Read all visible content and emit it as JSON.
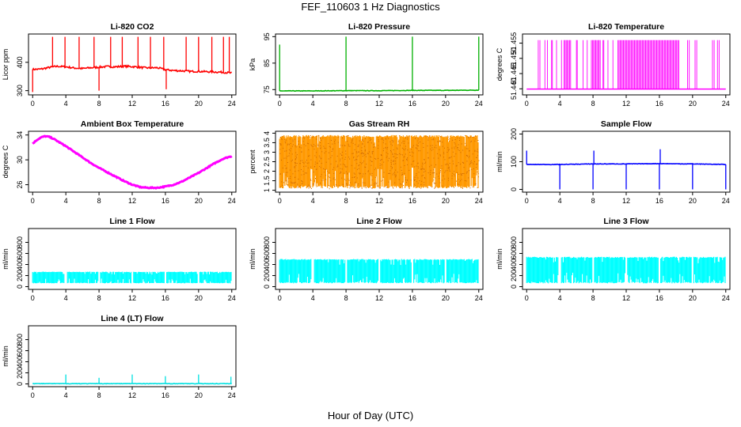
{
  "figure": {
    "title": "FEF_110603  1 Hz Diagnostics",
    "xlabel": "Hour of Day (UTC)"
  },
  "chart_data": [
    {
      "id": "co2",
      "type": "line",
      "title": "Li-820 CO2",
      "xlabel": "",
      "ylabel": "Licor ppm",
      "xlim": [
        -0.5,
        24.5
      ],
      "ylim": [
        285,
        500
      ],
      "xticks": [
        0,
        4,
        8,
        12,
        16,
        20,
        24
      ],
      "yticks": [
        300,
        400
      ],
      "color": "#ff0000",
      "grid": false,
      "series": [
        {
          "x": [
            0,
            1,
            2,
            3,
            4,
            5,
            6,
            7,
            8,
            9,
            10,
            11,
            12,
            13,
            14,
            15,
            16,
            17,
            18,
            19,
            20,
            21,
            22,
            23,
            24
          ],
          "y": [
            375,
            376,
            382,
            386,
            384,
            380,
            378,
            381,
            383,
            385,
            384,
            386,
            385,
            382,
            380,
            381,
            374,
            371,
            370,
            368,
            368,
            367,
            366,
            365,
            362
          ]
        }
      ],
      "spikes": [
        {
          "x": 0.0,
          "y": 295
        },
        {
          "x": 2.4,
          "y": 490
        },
        {
          "x": 3.9,
          "y": 490
        },
        {
          "x": 5.6,
          "y": 490
        },
        {
          "x": 7.4,
          "y": 490
        },
        {
          "x": 8.0,
          "y": 300
        },
        {
          "x": 9.4,
          "y": 490
        },
        {
          "x": 10.8,
          "y": 490
        },
        {
          "x": 12.7,
          "y": 490
        },
        {
          "x": 14.2,
          "y": 490
        },
        {
          "x": 15.8,
          "y": 490
        },
        {
          "x": 16.1,
          "y": 305
        },
        {
          "x": 18.5,
          "y": 490
        },
        {
          "x": 20.0,
          "y": 490
        },
        {
          "x": 21.6,
          "y": 490
        },
        {
          "x": 23.0,
          "y": 490
        },
        {
          "x": 23.7,
          "y": 490
        }
      ]
    },
    {
      "id": "pressure",
      "type": "line",
      "title": "Li-820 Pressure",
      "xlabel": "",
      "ylabel": "kPa",
      "xlim": [
        -0.5,
        24.5
      ],
      "ylim": [
        73,
        96
      ],
      "xticks": [
        0,
        4,
        8,
        12,
        16,
        20,
        24
      ],
      "yticks": [
        75,
        85,
        95
      ],
      "color": "#00b000",
      "grid": false,
      "series": [
        {
          "x": [
            0,
            4,
            8,
            12,
            16,
            20,
            24
          ],
          "y": [
            74.5,
            74.5,
            74.6,
            74.6,
            74.7,
            74.7,
            74.8
          ]
        }
      ],
      "spikes": [
        {
          "x": 0.0,
          "y": 92
        },
        {
          "x": 8.0,
          "y": 95
        },
        {
          "x": 16.0,
          "y": 95
        },
        {
          "x": 24.0,
          "y": 95
        }
      ]
    },
    {
      "id": "licor-temp",
      "type": "line",
      "title": "Li-820 Temperature",
      "xlabel": "",
      "ylabel": "degrees C",
      "xlim": [
        -0.5,
        24.5
      ],
      "ylim": [
        51.438,
        51.458
      ],
      "xticks": [
        0,
        4,
        8,
        12,
        16,
        20,
        24
      ],
      "ytick_labels": [
        "51.440",
        "51.445",
        "51.450",
        "51.455"
      ],
      "yticks": [
        51.44,
        51.445,
        51.45,
        51.455
      ],
      "color": "#ff00ff",
      "grid": false,
      "baseline": 51.4399,
      "top": 51.456,
      "toggle_bands": [
        [
          1.4,
          1.6
        ],
        [
          2.2,
          2.5
        ],
        [
          3.0,
          3.1
        ],
        [
          3.6,
          4.2
        ],
        [
          4.5,
          5.4
        ],
        [
          6.0,
          6.1
        ],
        [
          6.8,
          7.3
        ],
        [
          7.8,
          8.9
        ],
        [
          9.2,
          9.3
        ],
        [
          9.8,
          10.4
        ],
        [
          11.0,
          18.4
        ],
        [
          19.4,
          19.6
        ],
        [
          20.3,
          20.5
        ],
        [
          22.4,
          22.6
        ],
        [
          23.0,
          23.2
        ]
      ]
    },
    {
      "id": "ambient-temp",
      "type": "line",
      "title": "Ambient Box Temperature",
      "xlabel": "",
      "ylabel": "degrees C",
      "xlim": [
        -0.5,
        24.5
      ],
      "ylim": [
        24.8,
        34.6
      ],
      "xticks": [
        0,
        4,
        8,
        12,
        16,
        20,
        24
      ],
      "yticks": [
        26,
        30,
        34
      ],
      "color": "#ff00ff",
      "grid": false,
      "series": [
        {
          "x": [
            0,
            0.5,
            1,
            1.5,
            2,
            2.5,
            3,
            4,
            5,
            6,
            7,
            8,
            9,
            10,
            11,
            12,
            13,
            14,
            15,
            16,
            17,
            18,
            19,
            20,
            21,
            22,
            23,
            24
          ],
          "y": [
            32.6,
            33.2,
            33.6,
            33.8,
            33.7,
            33.4,
            33.0,
            32.2,
            31.3,
            30.4,
            29.5,
            28.7,
            28.0,
            27.3,
            26.6,
            26.0,
            25.6,
            25.5,
            25.5,
            25.7,
            26.0,
            26.5,
            27.2,
            27.9,
            28.7,
            29.5,
            30.2,
            30.6
          ]
        }
      ]
    },
    {
      "id": "rh",
      "type": "line",
      "title": "Gas Stream RH",
      "xlabel": "",
      "ylabel": "percent",
      "xlim": [
        -0.5,
        24.5
      ],
      "ylim": [
        0.9,
        4.1
      ],
      "xticks": [
        0,
        4,
        8,
        12,
        16,
        20,
        24
      ],
      "yticks": [
        1.0,
        1.5,
        2.0,
        2.5,
        3.0,
        3.5,
        4.0
      ],
      "color": "#ff9900",
      "grid": false,
      "band": [
        1.1,
        3.9
      ]
    },
    {
      "id": "sample-flow",
      "type": "line",
      "title": "Sample Flow",
      "xlabel": "",
      "ylabel": "ml/min",
      "xlim": [
        -0.5,
        24.5
      ],
      "ylim": [
        -10,
        210
      ],
      "xticks": [
        0,
        4,
        8,
        12,
        16,
        20,
        24
      ],
      "yticks": [
        0,
        100,
        200
      ],
      "color": "#0000ff",
      "grid": false,
      "series": [
        {
          "x": [
            0,
            4,
            8,
            12,
            16,
            20,
            24
          ],
          "y": [
            90,
            90,
            92,
            92,
            93,
            92,
            90
          ]
        }
      ],
      "spikes": [
        {
          "x": 0.0,
          "y": 140
        },
        {
          "x": 4.0,
          "y": 0
        },
        {
          "x": 8.0,
          "y": 0
        },
        {
          "x": 8.1,
          "y": 140
        },
        {
          "x": 12.0,
          "y": 0
        },
        {
          "x": 16.0,
          "y": 0
        },
        {
          "x": 16.1,
          "y": 145
        },
        {
          "x": 20.0,
          "y": 0
        },
        {
          "x": 24.0,
          "y": 0
        }
      ]
    },
    {
      "id": "line1",
      "type": "line",
      "title": "Line 1 Flow",
      "xlabel": "",
      "ylabel": "ml/min",
      "xlim": [
        -0.5,
        24.5
      ],
      "ylim": [
        -50,
        1050
      ],
      "xticks": [
        0,
        4,
        8,
        12,
        16,
        20,
        24
      ],
      "yticks": [
        0,
        200,
        400,
        600,
        800
      ],
      "color": "#00ffff",
      "grid": false,
      "band": [
        60,
        270
      ]
    },
    {
      "id": "line2",
      "type": "line",
      "title": "Line 2 Flow",
      "xlabel": "",
      "ylabel": "ml/min",
      "xlim": [
        -0.5,
        24.5
      ],
      "ylim": [
        -50,
        1050
      ],
      "xticks": [
        0,
        4,
        8,
        12,
        16,
        20,
        24
      ],
      "yticks": [
        0,
        200,
        400,
        600,
        800
      ],
      "color": "#00ffff",
      "grid": false,
      "band": [
        60,
        500
      ]
    },
    {
      "id": "line3",
      "type": "line",
      "title": "Line 3 Flow",
      "xlabel": "",
      "ylabel": "ml/min",
      "xlim": [
        -0.5,
        24.5
      ],
      "ylim": [
        -50,
        1050
      ],
      "xticks": [
        0,
        4,
        8,
        12,
        16,
        20,
        24
      ],
      "yticks": [
        0,
        200,
        400,
        600,
        800
      ],
      "color": "#00ffff",
      "grid": false,
      "band": [
        60,
        540
      ]
    },
    {
      "id": "line4",
      "type": "line",
      "title": "Line 4 (LT) Flow",
      "xlabel": "",
      "ylabel": "ml/min",
      "xlim": [
        -0.5,
        24.5
      ],
      "ylim": [
        -50,
        1050
      ],
      "xticks": [
        0,
        4,
        8,
        12,
        16,
        20,
        24
      ],
      "yticks": [
        0,
        200,
        400,
        600,
        800
      ],
      "color": "#00e0e0",
      "grid": false,
      "series": [
        {
          "x": [
            0,
            24
          ],
          "y": [
            5,
            5
          ]
        }
      ],
      "spikes": [
        {
          "x": 4.0,
          "y": 170
        },
        {
          "x": 8.0,
          "y": 110
        },
        {
          "x": 12.0,
          "y": 170
        },
        {
          "x": 16.0,
          "y": 140
        },
        {
          "x": 20.0,
          "y": 170
        },
        {
          "x": 23.9,
          "y": 130
        }
      ]
    }
  ]
}
